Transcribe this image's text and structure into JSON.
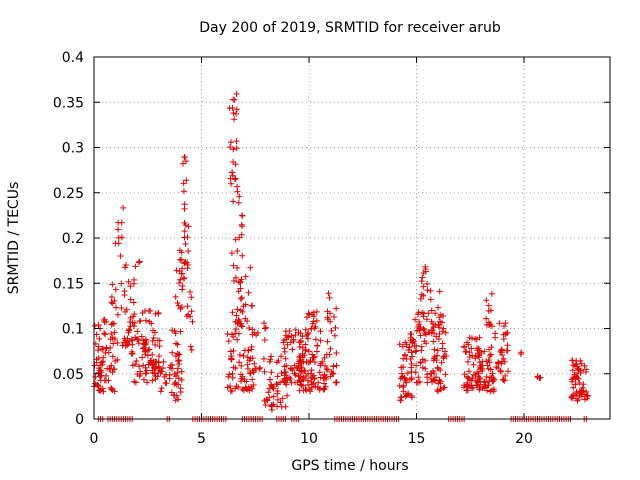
{
  "chart_data": {
    "type": "scatter",
    "title": "Day 200 of 2019, SRMTID for receiver arub",
    "xlabel": "GPS time / hours",
    "ylabel": "SRMTID / TECUs",
    "xlim": [
      0,
      24
    ],
    "ylim": [
      0,
      0.4
    ],
    "x_ticks": [
      0,
      5,
      10,
      15,
      20
    ],
    "y_ticks": [
      0,
      0.05,
      0.1,
      0.15,
      0.2,
      0.25,
      0.3,
      0.35,
      0.4
    ],
    "x_tick_labels": [
      "0",
      "5",
      "10",
      "15",
      "20"
    ],
    "y_tick_labels": [
      "0",
      "0.05",
      "0.1",
      "0.15",
      "0.2",
      "0.25",
      "0.3",
      "0.35",
      "0.4"
    ],
    "grid": true,
    "marker": "plus",
    "series": [
      {
        "name": "SRMTID",
        "color": "#e00000",
        "clusters": [
          {
            "x_range": [
              0.0,
              0.6
            ],
            "y_range": [
              0.03,
              0.11
            ],
            "count": 40
          },
          {
            "x_range": [
              0.3,
              1.1
            ],
            "y_range": [
              0.03,
              0.08
            ],
            "count": 30
          },
          {
            "x_range": [
              0.7,
              1.3
            ],
            "y_range": [
              0.08,
              0.15
            ],
            "count": 20
          },
          {
            "x_range": [
              1.0,
              1.4
            ],
            "y_range": [
              0.18,
              0.25
            ],
            "count": 9
          },
          {
            "x_range": [
              1.3,
              2.2
            ],
            "y_range": [
              0.08,
              0.175
            ],
            "count": 40
          },
          {
            "x_range": [
              1.6,
              2.5
            ],
            "y_range": [
              0.04,
              0.1
            ],
            "count": 30
          },
          {
            "x_range": [
              2.2,
              3.2
            ],
            "y_range": [
              0.05,
              0.12
            ],
            "count": 55
          },
          {
            "x_range": [
              2.6,
              3.4
            ],
            "y_range": [
              0.03,
              0.07
            ],
            "count": 20
          },
          {
            "x_range": [
              3.5,
              4.1
            ],
            "y_range": [
              0.02,
              0.1
            ],
            "count": 40
          },
          {
            "x_range": [
              3.8,
              4.2
            ],
            "y_range": [
              0.12,
              0.2
            ],
            "count": 14
          },
          {
            "x_range": [
              4.0,
              4.4
            ],
            "y_range": [
              0.15,
              0.22
            ],
            "count": 20
          },
          {
            "x_range": [
              4.1,
              4.3
            ],
            "y_range": [
              0.23,
              0.31
            ],
            "count": 9
          },
          {
            "x_range": [
              4.3,
              4.6
            ],
            "y_range": [
              0.07,
              0.15
            ],
            "count": 10
          },
          {
            "x_range": [
              6.2,
              6.8
            ],
            "y_range": [
              0.03,
              0.1
            ],
            "count": 30
          },
          {
            "x_range": [
              6.3,
              6.7
            ],
            "y_range": [
              0.25,
              0.36
            ],
            "count": 22
          },
          {
            "x_range": [
              6.4,
              7.0
            ],
            "y_range": [
              0.18,
              0.3
            ],
            "count": 16
          },
          {
            "x_range": [
              6.4,
              7.4
            ],
            "y_range": [
              0.1,
              0.17
            ],
            "count": 35
          },
          {
            "x_range": [
              6.8,
              7.5
            ],
            "y_range": [
              0.03,
              0.08
            ],
            "count": 30
          },
          {
            "x_range": [
              7.2,
              8.0
            ],
            "y_range": [
              0.05,
              0.11
            ],
            "count": 20
          },
          {
            "x_range": [
              7.9,
              9.0
            ],
            "y_range": [
              0.01,
              0.07
            ],
            "count": 50
          },
          {
            "x_range": [
              8.8,
              9.8
            ],
            "y_range": [
              0.04,
              0.1
            ],
            "count": 60
          },
          {
            "x_range": [
              9.5,
              10.8
            ],
            "y_range": [
              0.03,
              0.08
            ],
            "count": 80
          },
          {
            "x_range": [
              9.8,
              10.6
            ],
            "y_range": [
              0.08,
              0.12
            ],
            "count": 25
          },
          {
            "x_range": [
              10.8,
              11.3
            ],
            "y_range": [
              0.04,
              0.14
            ],
            "count": 30
          },
          {
            "x_range": [
              14.2,
              14.8
            ],
            "y_range": [
              0.02,
              0.09
            ],
            "count": 40
          },
          {
            "x_range": [
              14.7,
              15.9
            ],
            "y_range": [
              0.04,
              0.12
            ],
            "count": 80
          },
          {
            "x_range": [
              15.2,
              15.7
            ],
            "y_range": [
              0.13,
              0.175
            ],
            "count": 14
          },
          {
            "x_range": [
              15.8,
              16.4
            ],
            "y_range": [
              0.03,
              0.1
            ],
            "count": 40
          },
          {
            "x_range": [
              16.0,
              16.3
            ],
            "y_range": [
              0.1,
              0.15
            ],
            "count": 10
          },
          {
            "x_range": [
              17.2,
              18.0
            ],
            "y_range": [
              0.03,
              0.09
            ],
            "count": 60
          },
          {
            "x_range": [
              17.8,
              18.6
            ],
            "y_range": [
              0.03,
              0.08
            ],
            "count": 50
          },
          {
            "x_range": [
              18.2,
              18.6
            ],
            "y_range": [
              0.1,
              0.14
            ],
            "count": 12
          },
          {
            "x_range": [
              18.6,
              19.3
            ],
            "y_range": [
              0.04,
              0.11
            ],
            "count": 35
          },
          {
            "x_range": [
              19.8,
              20.0
            ],
            "y_range": [
              0.07,
              0.08
            ],
            "count": 2
          },
          {
            "x_range": [
              20.5,
              20.8
            ],
            "y_range": [
              0.045,
              0.05
            ],
            "count": 4
          },
          {
            "x_range": [
              22.2,
              23.0
            ],
            "y_range": [
              0.02,
              0.065
            ],
            "count": 55
          }
        ],
        "zero_segments": [
          [
            0.2,
            0.5
          ],
          [
            0.65,
            1.8
          ],
          [
            3.4,
            3.6
          ],
          [
            4.6,
            6.2
          ],
          [
            6.9,
            7.9
          ],
          [
            8.5,
            9.0
          ],
          [
            9.2,
            9.6
          ],
          [
            11.2,
            14.2
          ],
          [
            16.5,
            17.3
          ],
          [
            19.4,
            22.2
          ],
          [
            22.8,
            22.95
          ]
        ]
      }
    ]
  }
}
